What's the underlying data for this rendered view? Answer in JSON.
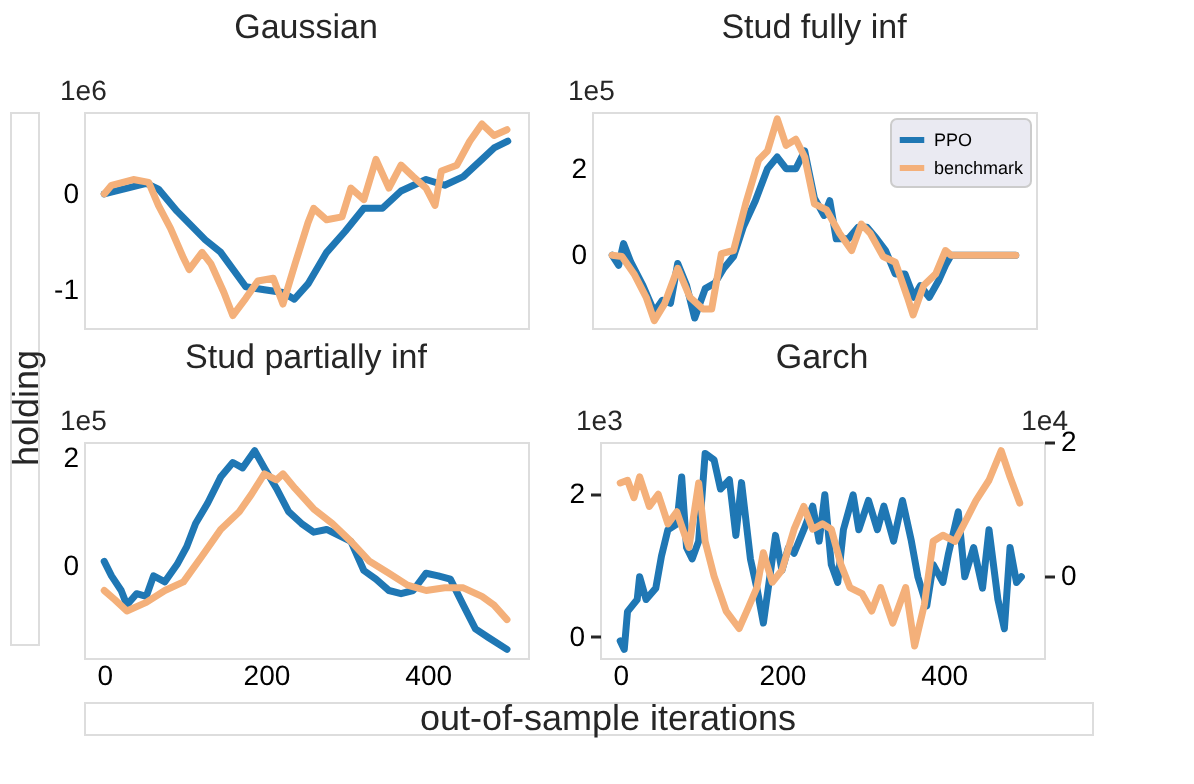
{
  "chart_data": [
    {
      "type": "line",
      "title": "Gaussian",
      "annotations": [
        "1e6"
      ],
      "xlim": [
        -25,
        524
      ],
      "xticks": [
        0,
        200,
        400
      ],
      "ylim": [
        -1.4,
        0.855
      ],
      "yticks": [
        -1,
        0
      ],
      "grid": false,
      "tick_labels": "y",
      "series": [
        {
          "color": "#1f77b4",
          "x": [
            0,
            52,
            67,
            90,
            125,
            144,
            175,
            198,
            221,
            235,
            252,
            275,
            298,
            321,
            344,
            367,
            398,
            421,
            444,
            467,
            482,
            499
          ],
          "values": [
            0,
            0.11,
            0.05,
            -0.18,
            -0.48,
            -0.61,
            -0.97,
            -1.0,
            -1.03,
            -1.1,
            -0.94,
            -0.61,
            -0.39,
            -0.15,
            -0.15,
            0.03,
            0.15,
            0.09,
            0.18,
            0.36,
            0.48,
            0.55
          ]
        },
        {
          "color": "#f4b07a",
          "x": [
            0,
            9,
            36,
            55,
            67,
            82,
            98,
            105,
            121,
            132,
            148,
            159,
            175,
            190,
            209,
            221,
            236,
            252,
            259,
            275,
            294,
            305,
            321,
            336,
            352,
            367,
            382,
            398,
            409,
            417,
            436,
            452,
            467,
            482,
            498
          ],
          "values": [
            0,
            0.09,
            0.15,
            0.12,
            -0.12,
            -0.36,
            -0.67,
            -0.79,
            -0.61,
            -0.73,
            -1.03,
            -1.27,
            -1.09,
            -0.91,
            -0.88,
            -1.15,
            -0.73,
            -0.3,
            -0.15,
            -0.27,
            -0.24,
            0.06,
            -0.06,
            0.36,
            0.06,
            0.3,
            0.18,
            0.06,
            -0.12,
            0.24,
            0.3,
            0.55,
            0.73,
            0.61,
            0.67
          ]
        }
      ]
    },
    {
      "type": "line",
      "title": "Stud fully inf",
      "annotations": [
        "1e5"
      ],
      "xlim": [
        -25,
        524
      ],
      "xticks": [
        0,
        200,
        400
      ],
      "ylim": [
        -1.68,
        3.31
      ],
      "yticks": [
        0,
        2
      ],
      "grid": false,
      "tick_labels": "y",
      "legend": "top right",
      "series": [
        {
          "name": "PPO",
          "color": "#1f77b4",
          "x": [
            0,
            8,
            14,
            23,
            38,
            52,
            62,
            72,
            81,
            92,
            102,
            115,
            127,
            138,
            150,
            162,
            177,
            192,
            204,
            215,
            227,
            238,
            250,
            262,
            269,
            277,
            292,
            304,
            315,
            327,
            338,
            350,
            362,
            373,
            381,
            392,
            404,
            412,
            419,
            499
          ],
          "values": [
            0,
            -0.23,
            0.27,
            -0.16,
            -0.7,
            -1.31,
            -1.04,
            -1.11,
            -0.19,
            -0.7,
            -1.45,
            -0.77,
            -0.64,
            -0.3,
            -0.03,
            0.65,
            1.26,
            2.0,
            2.27,
            2.0,
            2.0,
            2.41,
            1.32,
            0.92,
            1.26,
            0.38,
            0.38,
            0.65,
            0.65,
            0.38,
            0.11,
            -0.43,
            -0.43,
            -0.97,
            -0.7,
            -0.97,
            -0.57,
            -0.23,
            0,
            0
          ]
        },
        {
          "name": "benchmark",
          "color": "#f4b07a",
          "x": [
            0,
            12,
            27,
            42,
            52,
            65,
            81,
            96,
            112,
            123,
            135,
            150,
            165,
            181,
            192,
            204,
            215,
            227,
            238,
            250,
            265,
            281,
            296,
            308,
            319,
            335,
            350,
            365,
            372,
            385,
            400,
            412,
            419,
            499
          ],
          "values": [
            0,
            -0.03,
            -0.43,
            -0.97,
            -1.51,
            -1.11,
            -0.3,
            -0.97,
            -1.24,
            -1.24,
            0.04,
            0.11,
            1.19,
            2.2,
            2.41,
            3.15,
            2.54,
            2.68,
            2.27,
            1.19,
            1.05,
            0.51,
            0.11,
            0.72,
            0.51,
            -0.03,
            -0.16,
            -0.97,
            -1.38,
            -0.7,
            -0.43,
            0.11,
            0,
            0
          ]
        }
      ]
    },
    {
      "type": "line",
      "title": "Stud partially inf",
      "annotations": [
        "1e5"
      ],
      "xlabel": "out-of-sample iterations",
      "ylabel": "holding",
      "xlim": [
        -25,
        524
      ],
      "xticks": [
        0,
        200,
        400
      ],
      "ylim": [
        -1.7,
        2.3
      ],
      "yticks": [
        0,
        2
      ],
      "grid": false,
      "series": [
        {
          "color": "#1f77b4",
          "x": [
            0,
            9,
            21,
            28,
            40,
            52,
            61,
            75,
            90,
            102,
            113,
            128,
            144,
            159,
            171,
            186,
            198,
            213,
            228,
            244,
            259,
            275,
            290,
            305,
            321,
            336,
            352,
            367,
            382,
            398,
            413,
            428,
            444,
            459,
            475,
            498
          ],
          "values": [
            0.09,
            -0.18,
            -0.45,
            -0.72,
            -0.51,
            -0.56,
            -0.18,
            -0.29,
            0.03,
            0.36,
            0.79,
            1.17,
            1.65,
            1.92,
            1.82,
            2.14,
            1.82,
            1.44,
            1.01,
            0.79,
            0.63,
            0.68,
            0.57,
            0.46,
            -0.08,
            -0.24,
            -0.45,
            -0.51,
            -0.45,
            -0.13,
            -0.18,
            -0.24,
            -0.72,
            -1.16,
            -1.32,
            -1.54
          ]
        },
        {
          "color": "#f4b07a",
          "x": [
            0,
            13,
            28,
            52,
            75,
            98,
            121,
            144,
            167,
            182,
            198,
            213,
            221,
            236,
            259,
            282,
            305,
            328,
            352,
            375,
            398,
            421,
            444,
            467,
            482,
            498
          ],
          "values": [
            -0.45,
            -0.62,
            -0.83,
            -0.67,
            -0.45,
            -0.29,
            0.19,
            0.68,
            1.01,
            1.33,
            1.71,
            1.6,
            1.71,
            1.44,
            1.06,
            0.79,
            0.46,
            0.09,
            -0.13,
            -0.35,
            -0.45,
            -0.4,
            -0.4,
            -0.56,
            -0.72,
            -0.99
          ]
        }
      ]
    },
    {
      "type": "line",
      "title": "Garch",
      "annotations": [
        "1e3",
        "1e4"
      ],
      "xlim": [
        -25,
        524
      ],
      "xticks": [
        0,
        200,
        400
      ],
      "ylim": [
        -0.3,
        2.73
      ],
      "yticks": [
        0,
        2
      ],
      "y2lim": [
        -1.22,
        2.0
      ],
      "y2ticks": [
        0,
        2
      ],
      "grid": false,
      "series": [
        {
          "color": "#1f77b4",
          "x": [
            0,
            5,
            9,
            21,
            24,
            32,
            44,
            51,
            59,
            70,
            76,
            82,
            89,
            97,
            105,
            116,
            124,
            135,
            143,
            150,
            161,
            169,
            177,
            185,
            192,
            200,
            208,
            215,
            227,
            238,
            246,
            253,
            261,
            269,
            276,
            288,
            295,
            307,
            318,
            326,
            338,
            349,
            360,
            368,
            379,
            387,
            399,
            406,
            418,
            426,
            437,
            448,
            456,
            467,
            475,
            482,
            490,
            496
          ],
          "values": [
            -0.06,
            -0.18,
            0.35,
            0.52,
            0.84,
            0.52,
            0.68,
            1.13,
            1.5,
            1.58,
            2.24,
            1.25,
            1.09,
            1.34,
            2.57,
            2.48,
            2.07,
            2.2,
            1.42,
            2.16,
            1.09,
            0.68,
            0.19,
            0.84,
            1.42,
            0.93,
            1.25,
            1.17,
            1.5,
            1.83,
            1.34,
            1.99,
            1.01,
            0.76,
            1.5,
            1.99,
            1.5,
            1.91,
            1.5,
            1.83,
            1.34,
            1.91,
            1.34,
            0.84,
            0.43,
            1.01,
            0.76,
            1.17,
            1.75,
            0.84,
            1.25,
            0.68,
            1.5,
            0.52,
            0.11,
            1.25,
            0.76,
            0.84
          ]
        },
        {
          "color": "#f4b07a",
          "axis": "y2",
          "x": [
            0,
            9,
            17,
            24,
            36,
            47,
            59,
            70,
            85,
            97,
            105,
            116,
            131,
            147,
            158,
            169,
            177,
            188,
            200,
            215,
            227,
            238,
            250,
            261,
            273,
            284,
            299,
            311,
            322,
            337,
            353,
            364,
            376,
            387,
            399,
            414,
            429,
            440,
            456,
            471,
            482,
            494
          ],
          "values": [
            1.39,
            1.43,
            1.17,
            1.48,
            1.04,
            1.22,
            0.78,
            0.96,
            0.43,
            1.39,
            0.52,
            0,
            -0.52,
            -0.78,
            -0.48,
            -0.17,
            0.35,
            -0.09,
            0.09,
            0.7,
            1.04,
            0.7,
            0.78,
            0.7,
            0.17,
            -0.17,
            -0.26,
            -0.52,
            -0.17,
            -0.7,
            -0.17,
            -1.04,
            -0.43,
            0.52,
            0.61,
            0.52,
            0.87,
            1.13,
            1.43,
            1.87,
            1.48,
            1.09
          ]
        }
      ]
    }
  ]
}
